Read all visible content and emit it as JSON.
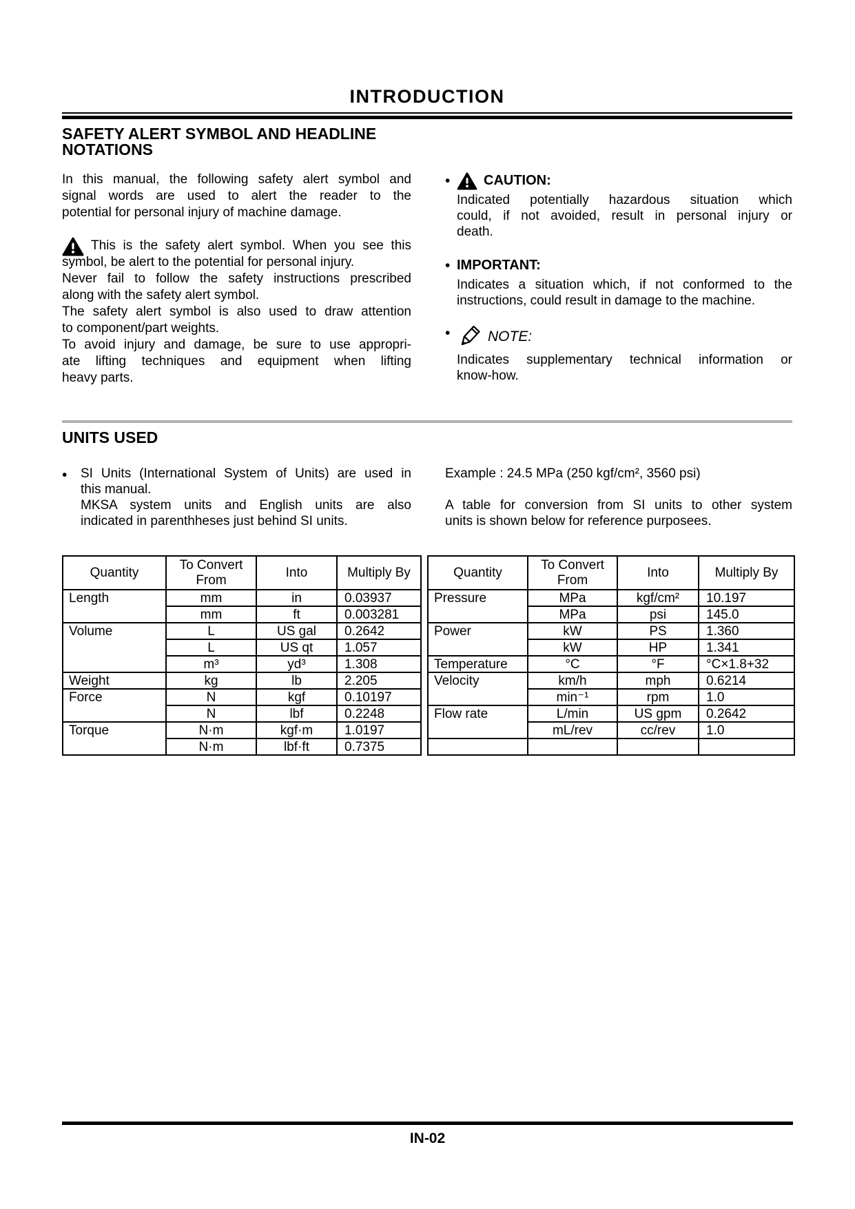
{
  "colors": {
    "background": "#ffffff",
    "text": "#000000",
    "divider_gray": "#b2b2b2"
  },
  "page": {
    "title": "INTRODUCTION",
    "page_number": "IN-02"
  },
  "safety_section": {
    "heading_lines": [
      {
        "t": "SAFETY ALERT SYMBOL AND HEADLINE",
        "j": false
      },
      {
        "t": "NOTATIONS",
        "j": false
      }
    ],
    "intro_lines": [
      {
        "t": "In this manual, the following safety alert symbol and",
        "j": true
      },
      {
        "t": "signal words are used to alert the reader to the",
        "j": true
      },
      {
        "t": "potential for personal injury of machine damage.",
        "j": false
      }
    ],
    "alert_symbol_lines": [
      {
        "t": "This is the safety alert symbol. When you see this",
        "j": true
      },
      {
        "t": "symbol, be alert to the potential for personal injury.",
        "j": false
      },
      {
        "t": "Never fail to follow the safety instructions prescribed",
        "j": true
      },
      {
        "t": "along with the safety alert symbol.",
        "j": false
      },
      {
        "t": "The safety alert symbol is also used to draw attention",
        "j": true
      },
      {
        "t": "to component/part weights.",
        "j": false
      },
      {
        "t": "To avoid injury and damage, be sure to use appropri-",
        "j": true
      },
      {
        "t": "ate lifting techniques and equipment when lifting",
        "j": true
      },
      {
        "t": "heavy parts.",
        "j": false
      }
    ],
    "caution": {
      "bullet": "•",
      "icon": "warning-triangle-icon",
      "label": "CAUTION:",
      "body_lines": [
        {
          "t": "Indicated potentially hazardous situation which",
          "j": true
        },
        {
          "t": "could, if not avoided, result in personal injury or",
          "j": true
        },
        {
          "t": "death.",
          "j": false
        }
      ]
    },
    "important": {
      "bullet": "•",
      "label": "IMPORTANT:",
      "body_lines": [
        {
          "t": "Indicates a situation which, if not conformed to the",
          "j": true
        },
        {
          "t": "instructions, could result in damage to the machine.",
          "j": false
        }
      ]
    },
    "note": {
      "bullet": "•",
      "icon": "pencil-icon",
      "label": "NOTE:",
      "body_lines": [
        {
          "t": "Indicates supplementary technical information or",
          "j": true
        },
        {
          "t": "know-how.",
          "j": false
        }
      ]
    }
  },
  "units_section": {
    "heading": "UNITS USED",
    "bullet": "•",
    "si_para1_lines": [
      {
        "t": "SI Units (International System of Units) are used in",
        "j": true
      },
      {
        "t": "this manual.",
        "j": false
      }
    ],
    "si_para2_lines": [
      {
        "t": "MKSA system units and English units are also",
        "j": true
      },
      {
        "t": "indicated in parenthheses just behind SI units.",
        "j": false
      }
    ],
    "example_text": "Example : 24.5 MPa (250 kgf/cm², 3560 psi)",
    "table_intro_lines": [
      {
        "t": "A table for conversion from SI units to other system",
        "j": true
      },
      {
        "t": "units is shown below for reference purposees.",
        "j": false
      }
    ]
  },
  "conversion_table": {
    "headers": {
      "quantity": "Quantity",
      "from": "To Convert From",
      "into": "Into",
      "by": "Multiply By"
    },
    "left_rows": [
      {
        "q": "Length",
        "from": "mm",
        "into": "in",
        "by": "0.03937",
        "group": true
      },
      {
        "q": "",
        "from": "mm",
        "into": "ft",
        "by": "0.003281",
        "group": false
      },
      {
        "q": "Volume",
        "from": "L",
        "into": "US gal",
        "by": "0.2642",
        "group": true
      },
      {
        "q": "",
        "from": "L",
        "into": "US qt",
        "by": "1.057",
        "group": false
      },
      {
        "q": "",
        "from": "m³",
        "into": "yd³",
        "by": "1.308",
        "group": false
      },
      {
        "q": "Weight",
        "from": "kg",
        "into": "lb",
        "by": "2.205",
        "group": true
      },
      {
        "q": "Force",
        "from": "N",
        "into": "kgf",
        "by": "0.10197",
        "group": true
      },
      {
        "q": "",
        "from": "N",
        "into": "lbf",
        "by": "0.2248",
        "group": false
      },
      {
        "q": "Torque",
        "from": "N·m",
        "into": "kgf·m",
        "by": "1.0197",
        "group": true
      },
      {
        "q": "",
        "from": "N·m",
        "into": "lbf·ft",
        "by": "0.7375",
        "group": false
      }
    ],
    "right_rows": [
      {
        "q": "Pressure",
        "from": "MPa",
        "into": "kgf/cm²",
        "by": "10.197",
        "group": true
      },
      {
        "q": "",
        "from": "MPa",
        "into": "psi",
        "by": "145.0",
        "group": false
      },
      {
        "q": "Power",
        "from": "kW",
        "into": "PS",
        "by": "1.360",
        "group": true
      },
      {
        "q": "",
        "from": "kW",
        "into": "HP",
        "by": "1.341",
        "group": false
      },
      {
        "q": "Temperature",
        "from": "°C",
        "into": "°F",
        "by": "°C×1.8+32",
        "group": true
      },
      {
        "q": "Velocity",
        "from": "km/h",
        "into": "mph",
        "by": "0.6214",
        "group": true
      },
      {
        "q": "",
        "from": "min⁻¹",
        "into": "rpm",
        "by": "1.0",
        "group": false
      },
      {
        "q": "Flow rate",
        "from": "L/min",
        "into": "US gpm",
        "by": "0.2642",
        "group": true
      },
      {
        "q": "",
        "from": "mL/rev",
        "into": "cc/rev",
        "by": "1.0",
        "group": false
      },
      {
        "q": "",
        "from": "",
        "into": "",
        "by": "",
        "group": true
      }
    ]
  }
}
